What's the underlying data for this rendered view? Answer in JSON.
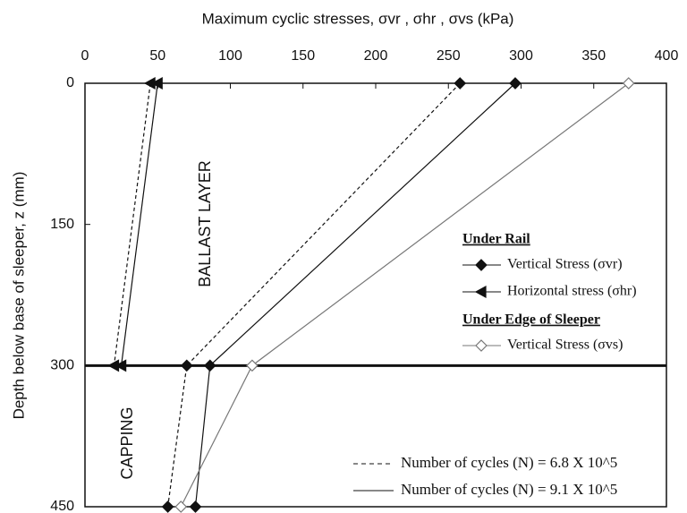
{
  "chart_data": {
    "type": "line",
    "title": "Maximum cyclic stresses, σvr , σhr , σvs (kPa)",
    "y_label": "Depth below base of sleeper, z (mm)",
    "annotations": [
      "BALLAST LAYER",
      "CAPPING"
    ],
    "depths": [
      0,
      300,
      450
    ],
    "xlim": [
      0,
      400
    ],
    "xticks": [
      0,
      50,
      100,
      150,
      200,
      250,
      300,
      350,
      400
    ],
    "ylim": [
      0,
      450
    ],
    "yticks": [
      0,
      150,
      300,
      450
    ],
    "y_reversed": true,
    "layer_boundary": 300,
    "series": [
      {
        "marker": "filled-diamond",
        "dash": true,
        "color": "#111",
        "values": [
          258,
          70,
          57
        ]
      },
      {
        "marker": "filled-diamond",
        "dash": false,
        "color": "#111",
        "values": [
          296,
          86,
          76
        ]
      },
      {
        "marker": "left-triangle",
        "dash": true,
        "color": "#111",
        "values": [
          45,
          20,
          null
        ]
      },
      {
        "marker": "left-triangle",
        "dash": false,
        "color": "#111",
        "values": [
          50,
          25,
          null
        ]
      },
      {
        "marker": "open-diamond",
        "dash": false,
        "color": "#777",
        "values": [
          374,
          115,
          66
        ]
      }
    ],
    "legend": {
      "groups": [
        {
          "title": "Under Rail",
          "entries": [
            {
              "label": "Vertical Stress (σvr)",
              "marker": "filled-diamond"
            },
            {
              "label": "Horizontal stress (σhr)",
              "marker": "left-triangle"
            }
          ]
        },
        {
          "title": "Under Edge of Sleeper",
          "entries": [
            {
              "label": "Vertical Stress (σvs)",
              "marker": "open-diamond"
            }
          ]
        }
      ],
      "line_styles": [
        {
          "label": "Number of cycles (N) = 6.8 X 10^5",
          "dash": true
        },
        {
          "label": "Number of cycles (N) = 9.1 X 10^5",
          "dash": false
        }
      ]
    }
  }
}
